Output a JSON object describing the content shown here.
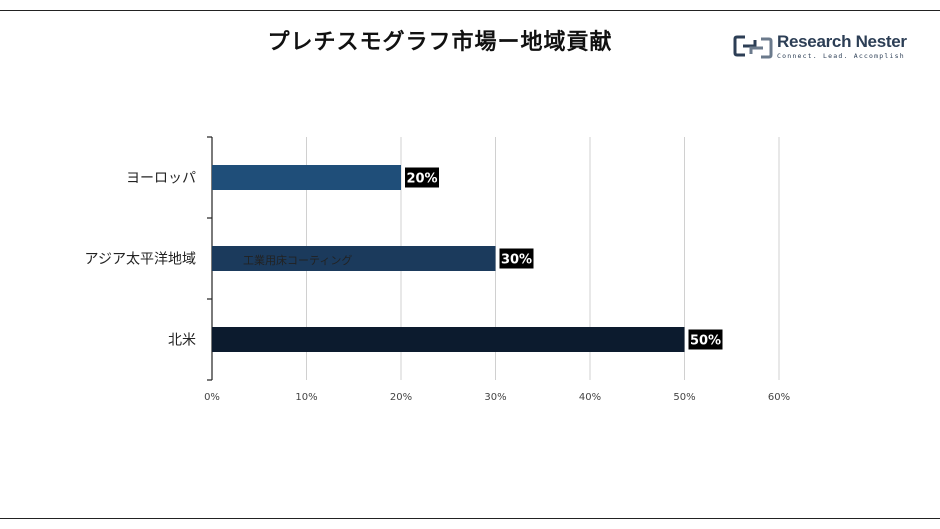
{
  "title": "プレチスモグラフ市場ー地域貢献",
  "logo": {
    "name": "Research Nester",
    "tagline": "Connect. Lead. Accomplish"
  },
  "overlay_text": "工業用床コーティング",
  "chart_data": {
    "type": "bar",
    "orientation": "horizontal",
    "categories": [
      "ヨーロッパ",
      "アジア太平洋地域",
      "北米"
    ],
    "values": [
      20,
      30,
      50
    ],
    "data_labels": [
      "20%",
      "30%",
      "50%"
    ],
    "bar_colors": [
      "#1f4e79",
      "#1b3a5c",
      "#0c1b2e"
    ],
    "xlim": [
      0,
      60
    ],
    "xticks": [
      0,
      10,
      20,
      30,
      40,
      50,
      60
    ],
    "xtick_labels": [
      "0%",
      "10%",
      "20%",
      "30%",
      "40%",
      "50%",
      "60%"
    ],
    "grid": "vertical",
    "legend": "none"
  }
}
